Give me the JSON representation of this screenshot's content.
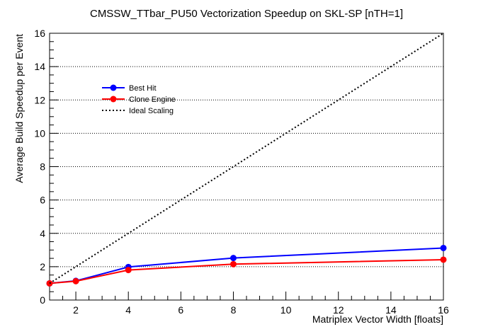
{
  "chart_data": {
    "type": "line",
    "title": "CMSSW_TTbar_PU50 Vectorization Speedup on SKL-SP [nTH=1]",
    "xlabel": "Matriplex Vector Width [floats]",
    "ylabel": "Average Build Speedup per Event",
    "xlim": [
      1,
      16
    ],
    "ylim": [
      0,
      16
    ],
    "x_ticks": [
      2,
      4,
      6,
      8,
      10,
      12,
      14,
      16
    ],
    "y_ticks": [
      0,
      2,
      4,
      6,
      8,
      10,
      12,
      14,
      16
    ],
    "grid": "horizontal-dotted",
    "legend_position": "top-left",
    "series": [
      {
        "name": "Best Hit",
        "color": "#0000ff",
        "marker": "circle",
        "x": [
          1,
          2,
          4,
          8,
          16
        ],
        "y": [
          1.0,
          1.15,
          1.98,
          2.52,
          3.12
        ]
      },
      {
        "name": "Clone Engine",
        "color": "#ff0000",
        "marker": "circle",
        "x": [
          1,
          2,
          4,
          8,
          16
        ],
        "y": [
          1.0,
          1.13,
          1.8,
          2.15,
          2.42
        ]
      },
      {
        "name": "Ideal Scaling",
        "color": "#000000",
        "style": "dotted",
        "x": [
          1,
          16
        ],
        "y": [
          1,
          16
        ]
      }
    ]
  }
}
